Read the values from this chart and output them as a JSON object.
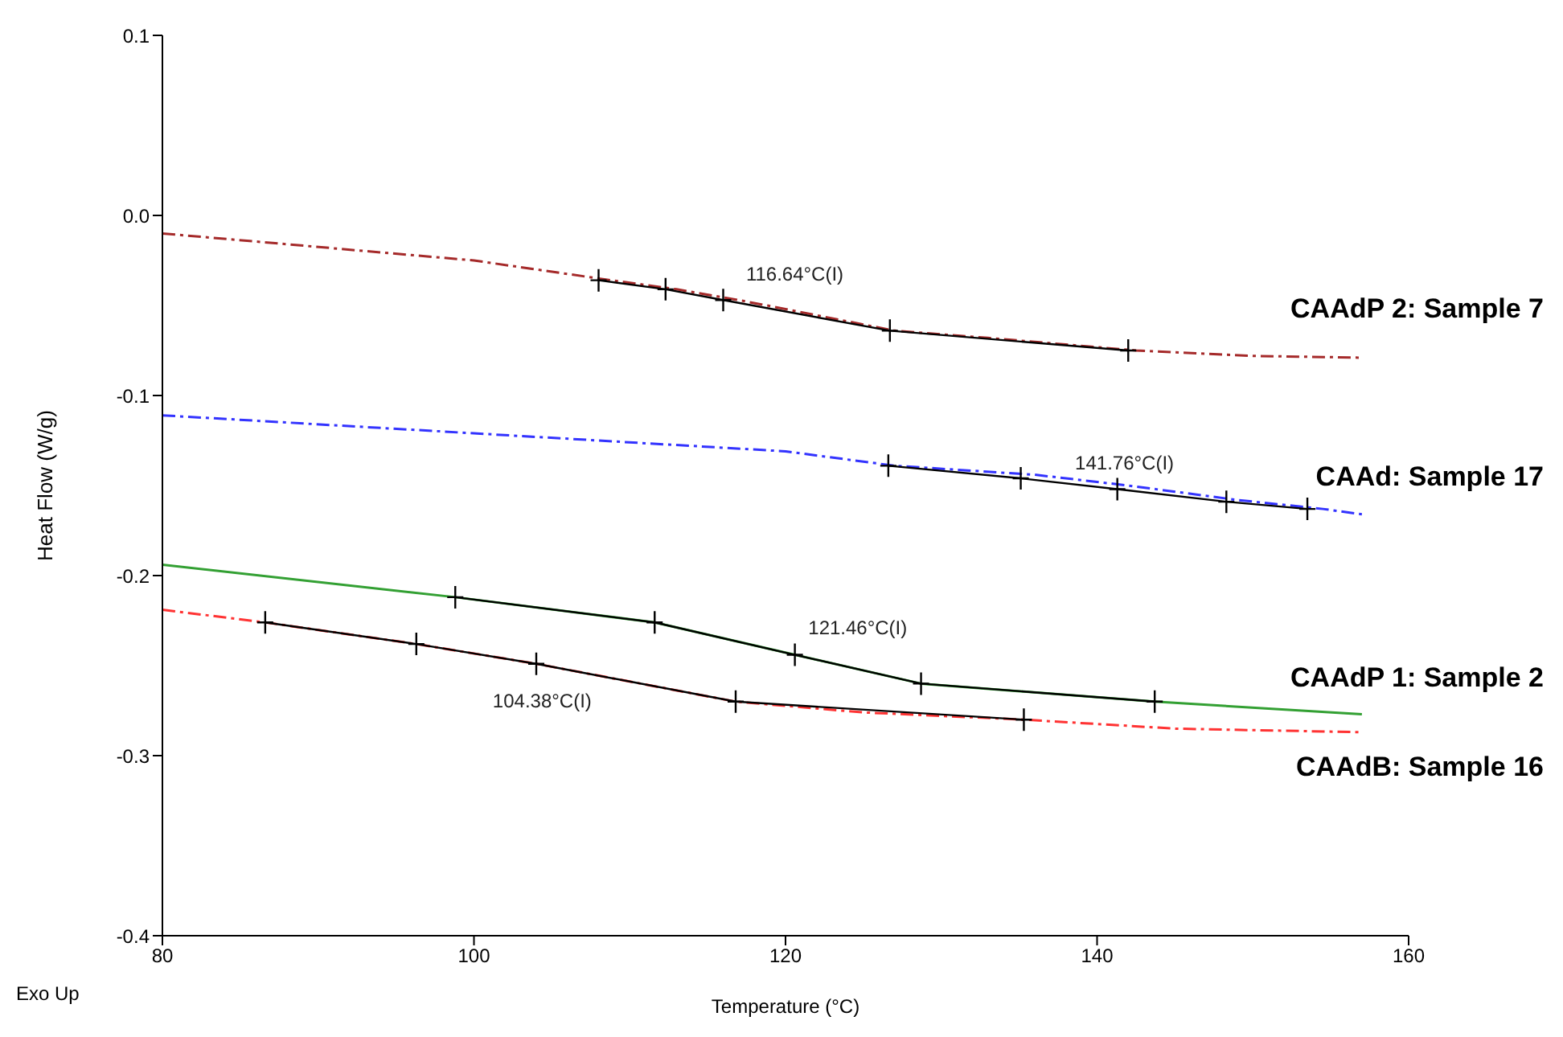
{
  "chart_data": {
    "type": "line",
    "xlabel": "Temperature (°C)",
    "ylabel": "Heat Flow (W/g)",
    "xlim": [
      80,
      160
    ],
    "xticks": [
      80,
      100,
      120,
      140,
      160
    ],
    "ylim": [
      -0.4,
      0.1
    ],
    "yticks": [
      {
        "value": 0.1,
        "label": "0.1"
      },
      {
        "value": 0,
        "label": "0.0"
      },
      {
        "value": -0.1,
        "label": "-0.1"
      },
      {
        "value": -0.2,
        "label": "-0.2"
      },
      {
        "value": -0.3,
        "label": "-0.3"
      },
      {
        "value": -0.4,
        "label": "-0.4"
      }
    ],
    "grid": false,
    "legend": false,
    "series": [
      {
        "name": "CAAdP 2: Sample 7",
        "color": "#a52a2a",
        "line_style": "dashed",
        "marker": "none",
        "x": [
          80,
          100,
          108,
          113,
          117,
          120,
          127,
          133,
          142.5,
          150,
          157
        ],
        "values": [
          -0.01,
          -0.025,
          -0.035,
          -0.041,
          -0.047,
          -0.052,
          -0.064,
          -0.068,
          -0.075,
          -0.078,
          -0.079
        ]
      },
      {
        "name": "CAAd: Sample 17",
        "color": "#3333ff",
        "line_style": "dashed",
        "marker": "none",
        "x": [
          80,
          100,
          120,
          127,
          136,
          142,
          149,
          154.5,
          157
        ],
        "values": [
          -0.111,
          -0.121,
          -0.131,
          -0.139,
          -0.144,
          -0.15,
          -0.158,
          -0.163,
          -0.166
        ]
      },
      {
        "name": "CAAdP 1: Sample 2",
        "color": "#33a033",
        "line_style": "solid",
        "marker": "none",
        "x": [
          80,
          98.8,
          111.6,
          120.6,
          128.7,
          143.7,
          157
        ],
        "values": [
          -0.194,
          -0.212,
          -0.226,
          -0.244,
          -0.26,
          -0.27,
          -0.277
        ]
      },
      {
        "name": "CAAdB: Sample 16",
        "color": "#ff3333",
        "line_style": "dashed",
        "marker": "none",
        "x": [
          80,
          86.6,
          96.3,
          104,
          116.8,
          125,
          135.3,
          145,
          157
        ],
        "values": [
          -0.219,
          -0.226,
          -0.238,
          -0.249,
          -0.27,
          -0.276,
          -0.28,
          -0.285,
          -0.287
        ]
      },
      {
        "color": "#000000",
        "line_style": "solid",
        "marker": "cross",
        "x": [
          108,
          112.3,
          116,
          126.7,
          142
        ],
        "values": [
          -0.036,
          -0.041,
          -0.047,
          -0.064,
          -0.075
        ]
      },
      {
        "color": "#000000",
        "line_style": "solid",
        "marker": "cross",
        "x": [
          126.6,
          135.1,
          141.3,
          148.3,
          153.5
        ],
        "values": [
          -0.139,
          -0.146,
          -0.152,
          -0.159,
          -0.163
        ]
      },
      {
        "color": "#000000",
        "line_style": "solid",
        "marker": "cross",
        "x": [
          98.8,
          111.6,
          120.6,
          128.7,
          143.7
        ],
        "values": [
          -0.212,
          -0.226,
          -0.244,
          -0.26,
          -0.27
        ]
      },
      {
        "color": "#000000",
        "line_style": "solid",
        "marker": "cross",
        "x": [
          86.6,
          96.3,
          104,
          116.8,
          135.3
        ],
        "values": [
          -0.226,
          -0.238,
          -0.249,
          -0.27,
          -0.28
        ]
      }
    ],
    "annotations": [
      {
        "text": "116.64°C(I)",
        "x": 116.64,
        "y": -0.047
      },
      {
        "text": "141.76°C(I)",
        "x": 141.76,
        "y": -0.152
      },
      {
        "text": "121.46°C(I)",
        "x": 121.46,
        "y": -0.245
      },
      {
        "text": "104.38°C(I)",
        "x": 104.38,
        "y": -0.25
      },
      "Exo Up"
    ]
  }
}
